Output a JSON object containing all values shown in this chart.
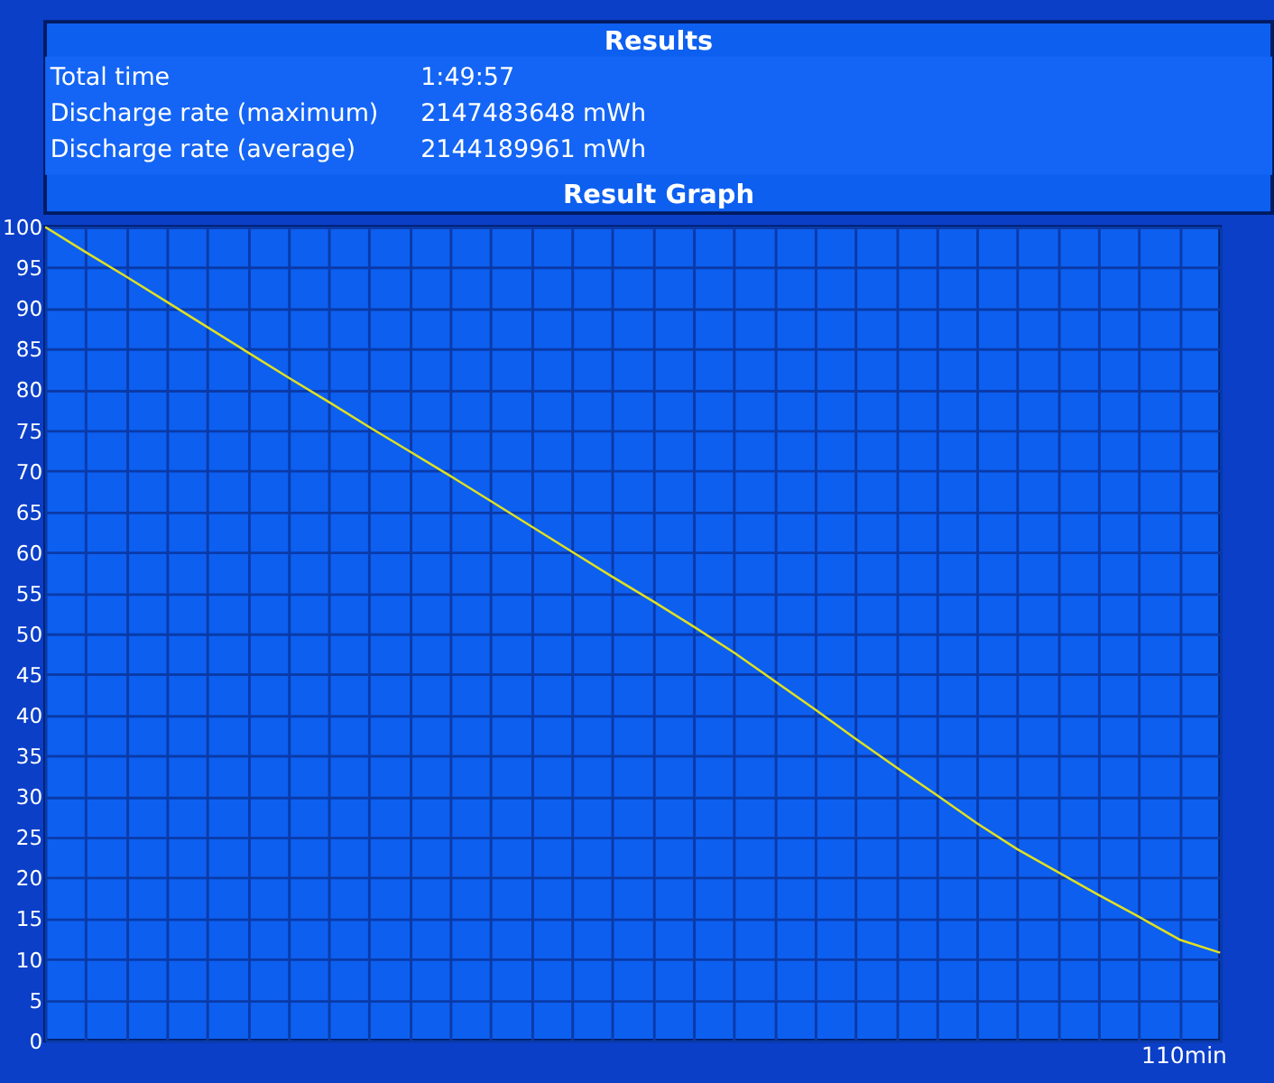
{
  "chart_data": {
    "type": "line",
    "title": "Results",
    "subtitle": "Result Graph",
    "annotations": [
      "Total time",
      "1:49:57",
      "Discharge rate (maximum)",
      "2147483648 mWh",
      "Discharge rate (average)",
      "2144189961 mWh",
      "110min"
    ],
    "categories": [
      null,
      null,
      null,
      null,
      null,
      null,
      null,
      null,
      null,
      null,
      null,
      null,
      null,
      null,
      null,
      null,
      null,
      null,
      null,
      null,
      null,
      null,
      null,
      null,
      null,
      null,
      null,
      null,
      null,
      null
    ],
    "series": [
      {
        "color": "#e0e020",
        "values": [
          100,
          96.9,
          93.9,
          90.8,
          87.7,
          84.6,
          81.5,
          78.5,
          75.4,
          72.4,
          69.4,
          66.3,
          63.2,
          60.1,
          57.0,
          54.0,
          50.9,
          47.7,
          44.2,
          40.7,
          37.1,
          33.6,
          30.2,
          26.7,
          23.5,
          20.7,
          17.9,
          15.2,
          12.4,
          10.8
        ]
      }
    ],
    "ylim": [
      0,
      100
    ],
    "yticks": [
      0,
      5,
      10,
      15,
      20,
      25,
      30,
      35,
      40,
      45,
      50,
      55,
      60,
      65,
      70,
      75,
      80,
      85,
      90,
      95,
      100
    ],
    "grid": true,
    "marker": "none",
    "line_style": "solid"
  }
}
